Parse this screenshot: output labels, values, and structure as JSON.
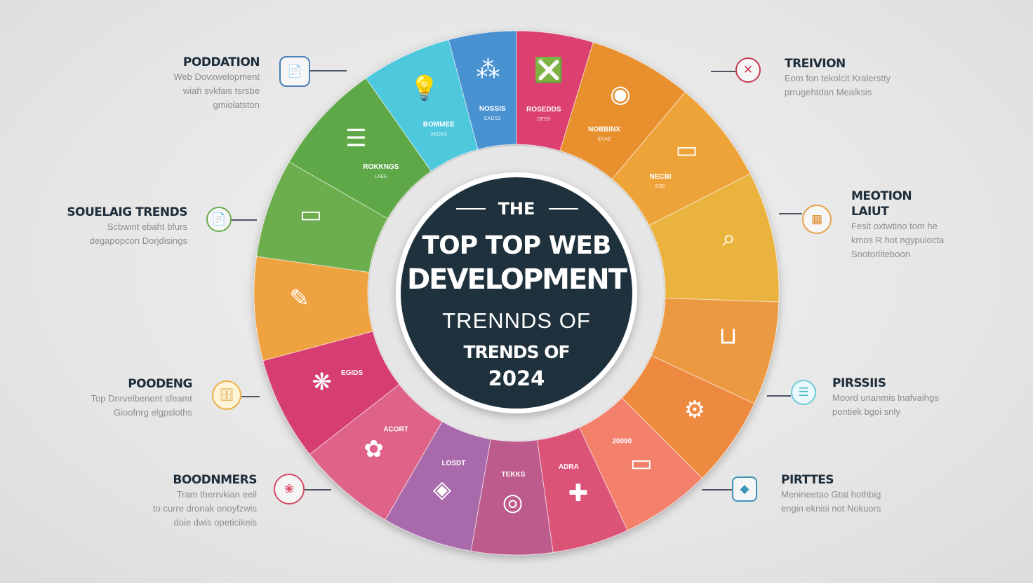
{
  "title": {
    "the": "THE",
    "line1": "TOP TOP WEB",
    "line2": "DEVELOPMENT",
    "line3": "TRENNDS OF",
    "line4": "TRENDS OF",
    "year": "2024"
  },
  "colors": {
    "center": "#1f313d",
    "text_dark": "#1e2d3a",
    "text_gray": "#8d8d8d"
  },
  "segments": [
    {
      "color": "#dc3f6f",
      "icon": "❎",
      "icon_name": "frame-icon",
      "label": "ROSEDDS",
      "sub": "DESS"
    },
    {
      "color": "#e8902e",
      "icon": "◉",
      "icon_name": "target-icon",
      "label": "NOBBINX",
      "sub": "EXAE"
    },
    {
      "color": "#eea338",
      "icon": "▭",
      "icon_name": "chat-icon",
      "label": "NECBI",
      "sub": "ERE"
    },
    {
      "color": "#e9b33e",
      "icon": "⌕",
      "icon_name": "search-card-icon",
      "label": "",
      "sub": ""
    },
    {
      "color": "#ec9a42",
      "icon": "⊔",
      "icon_name": "device-icon",
      "label": "",
      "sub": ""
    },
    {
      "color": "#ee8a3f",
      "icon": "⚙",
      "icon_name": "network-icon",
      "label": "",
      "sub": ""
    },
    {
      "color": "#f2806a",
      "icon": "▭",
      "icon_name": "card-icon",
      "label": "20090",
      "sub": ""
    },
    {
      "color": "#dc5378",
      "icon": "✚",
      "icon_name": "medical-icon",
      "label": "ADRA",
      "sub": ""
    },
    {
      "color": "#bd5b8c",
      "icon": "◎",
      "icon_name": "gear-circle-icon",
      "label": "TEKKS",
      "sub": ""
    },
    {
      "color": "#a86aaa",
      "icon": "◈",
      "icon_name": "gem-icon",
      "label": "LOSDT",
      "sub": ""
    },
    {
      "color": "#df6488",
      "icon": "✿",
      "icon_name": "flower-icon",
      "label": "ACORT",
      "sub": ""
    },
    {
      "color": "#d63d72",
      "icon": "❋",
      "icon_name": "molecule-icon",
      "label": "EGIDS",
      "sub": ""
    },
    {
      "color": "#efa23f",
      "icon": "✎",
      "icon_name": "pen-tool-icon",
      "label": "",
      "sub": ""
    },
    {
      "color": "#6cae4d",
      "icon": "▭",
      "icon_name": "laptop-icon",
      "label": "",
      "sub": ""
    },
    {
      "color": "#5fa846",
      "icon": "☰",
      "icon_name": "stack-icon",
      "label": "ROKKNGS",
      "sub": "LAEE"
    },
    {
      "color": "#4ec8dc",
      "icon": "💡",
      "icon_name": "lightbulb-icon",
      "label": "BOMMEE",
      "sub": "AEDSS"
    },
    {
      "color": "#4a92d2",
      "icon": "⁂",
      "icon_name": "dots-icon",
      "label": "NOSSIS",
      "sub": "EADSS"
    }
  ],
  "callouts": {
    "poddation": {
      "title": "PODDATION",
      "desc": [
        "Web Dovxwelopment",
        "wiah svkfais tsrsbe",
        "gmiolatston"
      ],
      "icon": "📄"
    },
    "souelaig": {
      "title": "SOUELAIG TRENDS",
      "desc": [
        "Scbwint ebaht bfurs",
        "degapopcon Dorjdisings"
      ],
      "icon": "📄"
    },
    "poodeng": {
      "title": "POODENG",
      "desc": [
        "Top Dnrvelbenent sfeamt",
        "Gioofnrg elgpsloths"
      ],
      "icon": "🗄"
    },
    "boodnmers": {
      "title": "BOODNMERS",
      "desc": [
        "Tram therrvkian eeil",
        "to curre dronak onoyfzwis",
        "doie dwis opeticikeis"
      ],
      "icon": "❀"
    },
    "treivion": {
      "title": "TREIVION",
      "desc": [
        "Eom fon tekolcit Kralerstty",
        "prrugehtdan Mealksis"
      ],
      "icon": "✕"
    },
    "meotion": {
      "title": "MEOTION",
      "title2": "LAIUT",
      "desc": [
        "Fesit oxtwtino tom he",
        "kmos R hot ngypuiocta",
        "Snotorliteboon"
      ],
      "icon": "▦"
    },
    "pirssiis": {
      "title": "PIRSSIIS",
      "desc": [
        "Moord unanmis lnafvaihgs",
        "pontiek bgoi snly"
      ],
      "icon": "☰"
    },
    "pirttes": {
      "title": "PIRTTES",
      "desc": [
        "Menineetao Gtat hothbig",
        "engin eknisi not Nokuors"
      ],
      "icon": "◆"
    }
  }
}
